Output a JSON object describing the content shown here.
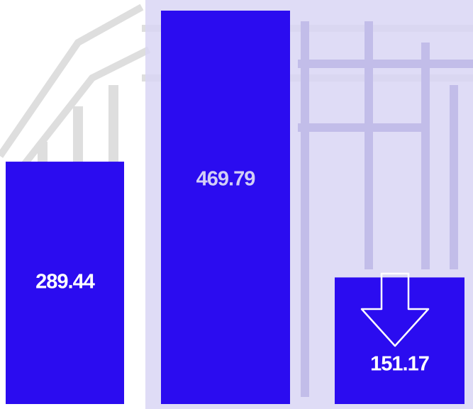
{
  "chart_data": {
    "type": "bar",
    "categories": [
      null,
      null,
      null
    ],
    "values": [
      289.44,
      469.79,
      151.17
    ],
    "color": "#2b0cf0"
  }
}
